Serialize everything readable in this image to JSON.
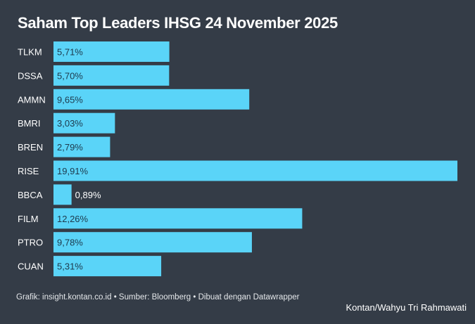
{
  "title": "Saham Top Leaders IHSG 24 November 2025",
  "source": "Grafik: insight.kontan.co.id • Sumber: Bloomberg • Dibuat dengan Datawrapper",
  "credit": "Kontan/Wahyu Tri Rahmawati",
  "colors": {
    "background": "#343c47",
    "bar": "#5ad4f8",
    "label_inside": "#1d3a4d",
    "label_outside": "#ffffff"
  },
  "chart_data": {
    "type": "bar",
    "orientation": "horizontal",
    "title": "Saham Top Leaders IHSG 24 November 2025",
    "categories": [
      "TLKM",
      "DSSA",
      "AMMN",
      "BMRI",
      "BREN",
      "RISE",
      "BBCA",
      "FILM",
      "PTRO",
      "CUAN"
    ],
    "values": [
      5.71,
      5.7,
      9.65,
      3.03,
      2.79,
      19.91,
      0.89,
      12.26,
      9.78,
      5.31
    ],
    "labels": [
      "5,71%",
      "5,70%",
      "9,65%",
      "3,03%",
      "2,79%",
      "19,91%",
      "0,89%",
      "12,26%",
      "9,78%",
      "5,31%"
    ],
    "xlim": [
      0,
      19.91
    ],
    "grid": false
  }
}
